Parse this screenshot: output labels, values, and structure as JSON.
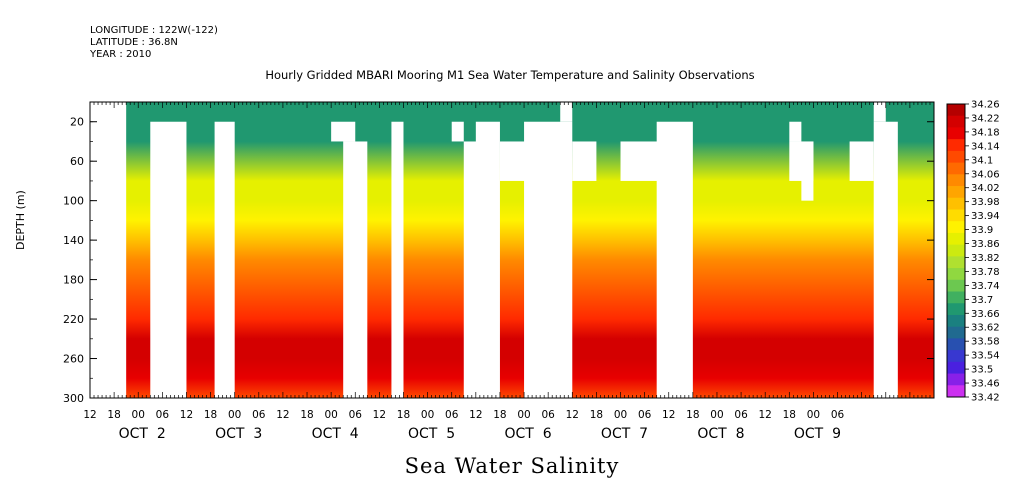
{
  "header": {
    "longitude": "LONGITUDE : 122W(-122)",
    "latitude": "LATITUDE : 36.8N",
    "year": "YEAR : 2010"
  },
  "title": "Hourly Gridded MBARI Mooring M1 Sea Water Temperature and Salinity Observations",
  "bottom_title": "Sea Water Salinity",
  "colors": {
    "palette": [
      "#b50000",
      "#d40000",
      "#e80000",
      "#ff2a00",
      "#ff4a00",
      "#ff6a00",
      "#ff8a00",
      "#ffa500",
      "#ffc000",
      "#ffdc00",
      "#fff200",
      "#e6f000",
      "#ccea10",
      "#b0e030",
      "#90d840",
      "#6cc850",
      "#40b060",
      "#209870",
      "#1a8080",
      "#206a90",
      "#2850b0",
      "#3838d0",
      "#4a20e0",
      "#8820e8",
      "#cc30f0"
    ]
  },
  "chart_data": {
    "type": "heatmap",
    "title": "Hourly Gridded MBARI Mooring M1 Sea Water Temperature and Salinity Observations",
    "xlabel": "",
    "ylabel": "DEPTH (m)",
    "ylim": [
      300,
      0
    ],
    "yticks": [
      20,
      60,
      100,
      140,
      180,
      220,
      260,
      300
    ],
    "x_hour_ticks": [
      "12",
      "18",
      "00",
      "06",
      "12",
      "18",
      "00",
      "06",
      "12",
      "18",
      "00",
      "06",
      "12",
      "18",
      "00",
      "06",
      "12",
      "18",
      "00",
      "06",
      "12",
      "18",
      "00",
      "06",
      "12",
      "18",
      "00",
      "06",
      "12",
      "18",
      "00",
      "06"
    ],
    "x_day_labels": [
      "OCT  2",
      "OCT  3",
      "OCT  4",
      "OCT  5",
      "OCT  6",
      "OCT  7",
      "OCT  8",
      "OCT  9"
    ],
    "x_range_hours": [
      0,
      210
    ],
    "colorbar_levels": [
      "34.26",
      "34.22",
      "34.18",
      "34.14",
      "34.1",
      "34.06",
      "34.02",
      "33.98",
      "33.94",
      "33.9",
      "33.86",
      "33.82",
      "33.78",
      "33.74",
      "33.7",
      "33.66",
      "33.62",
      "33.58",
      "33.54",
      "33.5",
      "33.46",
      "33.42"
    ],
    "depth_profile": {
      "depth_m": [
        0,
        20,
        40,
        80,
        100,
        120,
        140,
        160,
        180,
        200,
        220,
        240,
        260,
        280,
        300
      ],
      "salinity": [
        33.68,
        33.68,
        33.68,
        33.86,
        33.86,
        33.92,
        33.98,
        34.04,
        34.06,
        34.1,
        34.14,
        34.2,
        34.2,
        34.18,
        34.12
      ]
    },
    "gaps_hours_depth": [
      {
        "x": [
          0,
          9
        ],
        "depth": [
          0,
          300
        ]
      },
      {
        "x": [
          15,
          24
        ],
        "depth": [
          20,
          300
        ]
      },
      {
        "x": [
          31,
          36
        ],
        "depth": [
          20,
          300
        ]
      },
      {
        "x": [
          60,
          66
        ],
        "depth": [
          20,
          40
        ]
      },
      {
        "x": [
          63,
          69
        ],
        "depth": [
          40,
          300
        ]
      },
      {
        "x": [
          75,
          78
        ],
        "depth": [
          20,
          300
        ]
      },
      {
        "x": [
          90,
          93
        ],
        "depth": [
          20,
          40
        ]
      },
      {
        "x": [
          93,
          99
        ],
        "depth": [
          40,
          300
        ]
      },
      {
        "x": [
          96,
          102
        ],
        "depth": [
          20,
          300
        ]
      },
      {
        "x": [
          102,
          111
        ],
        "depth": [
          40,
          80
        ]
      },
      {
        "x": [
          117,
          120
        ],
        "depth": [
          0,
          20
        ]
      },
      {
        "x": [
          108,
          120
        ],
        "depth": [
          20,
          300
        ]
      },
      {
        "x": [
          120,
          126
        ],
        "depth": [
          40,
          80
        ]
      },
      {
        "x": [
          132,
          144
        ],
        "depth": [
          40,
          80
        ]
      },
      {
        "x": [
          141,
          150
        ],
        "depth": [
          20,
          300
        ]
      },
      {
        "x": [
          174,
          180
        ],
        "depth": [
          40,
          80
        ]
      },
      {
        "x": [
          174,
          177
        ],
        "depth": [
          20,
          40
        ]
      },
      {
        "x": [
          177,
          180
        ],
        "depth": [
          40,
          100
        ]
      },
      {
        "x": [
          189,
          195
        ],
        "depth": [
          40,
          80
        ]
      },
      {
        "x": [
          195,
          198
        ],
        "depth": [
          0,
          20
        ]
      },
      {
        "x": [
          195,
          201
        ],
        "depth": [
          20,
          300
        ]
      }
    ]
  }
}
